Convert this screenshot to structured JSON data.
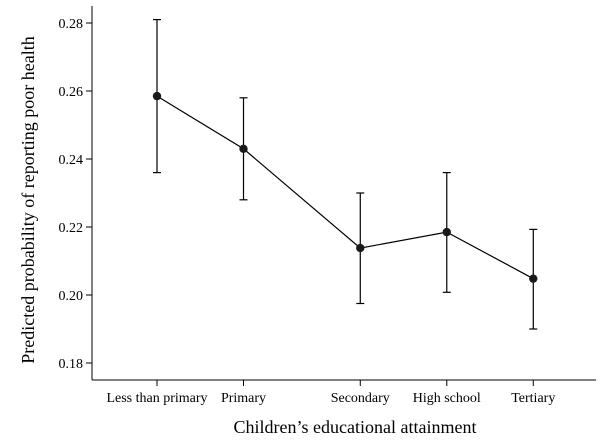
{
  "chart_data": {
    "type": "line",
    "title": "",
    "xlabel": "Children’s educational attainment",
    "ylabel": "Predicted probability of reporting poor health",
    "categories": [
      "Less than primary",
      "Primary",
      "Secondary",
      "High school",
      "Tertiary"
    ],
    "category_x": [
      0,
      1,
      2.35,
      3.35,
      4.35
    ],
    "ylim": [
      0.175,
      0.285
    ],
    "yticks": [
      0.18,
      0.2,
      0.22,
      0.24,
      0.26,
      0.28
    ],
    "ytick_labels": [
      "0.18",
      "0.20",
      "0.22",
      "0.24",
      "0.26",
      "0.28"
    ],
    "grid": false,
    "legend": "none",
    "series": [
      {
        "values": [
          0.2585,
          0.243,
          0.2138,
          0.2185,
          0.2048
        ],
        "lower": [
          0.236,
          0.228,
          0.1975,
          0.2008,
          0.19
        ],
        "upper": [
          0.281,
          0.258,
          0.23,
          0.236,
          0.2193
        ]
      }
    ]
  }
}
